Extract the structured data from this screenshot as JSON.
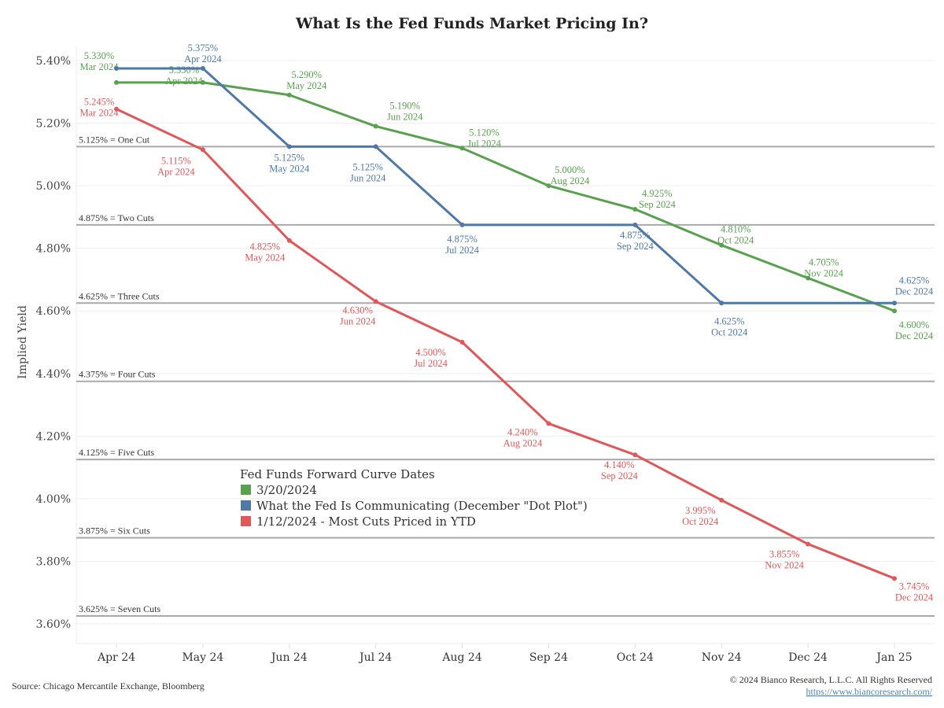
{
  "chart_data": {
    "type": "line",
    "title": "What Is the Fed Funds Market Pricing In?",
    "xlabel": "",
    "ylabel": "Implied Yield",
    "ylim": [
      3.55,
      5.45
    ],
    "y_ticks": [
      5.4,
      5.2,
      5.0,
      4.8,
      4.6,
      4.4,
      4.2,
      4.0,
      3.8,
      3.6
    ],
    "y_tick_labels": [
      "5.40%",
      "5.20%",
      "5.00%",
      "4.80%",
      "4.60%",
      "4.40%",
      "4.20%",
      "4.00%",
      "3.80%",
      "3.60%"
    ],
    "x_tick_labels": [
      "Apr 24",
      "May 24",
      "Jun 24",
      "Jul 24",
      "Aug 24",
      "Sep 24",
      "Oct 24",
      "Nov 24",
      "Dec 24",
      "Jan 25"
    ],
    "grid": true,
    "reference_lines": [
      {
        "value": 5.125,
        "label": "5.125% = One Cut"
      },
      {
        "value": 4.875,
        "label": "4.875% = Two Cuts"
      },
      {
        "value": 4.625,
        "label": "4.625% = Three Cuts"
      },
      {
        "value": 4.375,
        "label": "4.375% = Four Cuts"
      },
      {
        "value": 4.125,
        "label": "4.125% = Five Cuts"
      },
      {
        "value": 3.875,
        "label": "3.875% = Six Cuts"
      },
      {
        "value": 3.625,
        "label": "3.625% = Seven Cuts"
      }
    ],
    "legend": {
      "title": "Fed Funds Forward Curve Dates",
      "placement": "center-left"
    },
    "series": [
      {
        "name": "3/20/2024",
        "color": "#59a14f",
        "x": [
          "Mar 2024",
          "Apr 2024",
          "May 2024",
          "Jun 2024",
          "Jul 2024",
          "Aug 2024",
          "Sep 2024",
          "Oct 2024",
          "Nov 2024",
          "Dec 2024"
        ],
        "values": [
          5.33,
          5.33,
          5.29,
          5.19,
          5.12,
          5.0,
          4.925,
          4.81,
          4.705,
          4.6
        ],
        "labels": [
          "5.330%",
          "5.330%",
          "5.290%",
          "5.190%",
          "5.120%",
          "5.000%",
          "4.925%",
          "4.810%",
          "4.705%",
          "4.600%"
        ]
      },
      {
        "name": "What the Fed Is Communicating (December \"Dot Plot\")",
        "color": "#4e79a7",
        "x": [
          "Mar 2024",
          "Apr 2024",
          "May 2024",
          "Jun 2024",
          "Jul 2024",
          "Sep 2024",
          "Oct 2024",
          "Dec 2024"
        ],
        "x_index": [
          0,
          1,
          2,
          3,
          4,
          6,
          7,
          9
        ],
        "values": [
          5.375,
          5.375,
          5.125,
          5.125,
          4.875,
          4.875,
          4.625,
          4.625
        ],
        "labels": [
          null,
          "5.375%",
          "5.125%",
          "5.125%",
          "4.875%",
          "4.875%",
          "4.625%",
          "4.625%"
        ]
      },
      {
        "name": "1/12/2024 - Most Cuts Priced in YTD",
        "color": "#e15759",
        "x": [
          "Mar 2024",
          "Apr 2024",
          "May 2024",
          "Jun 2024",
          "Jul 2024",
          "Aug 2024",
          "Sep 2024",
          "Oct 2024",
          "Nov 2024",
          "Dec 2024"
        ],
        "values": [
          5.245,
          5.115,
          4.825,
          4.63,
          4.5,
          4.24,
          4.14,
          3.995,
          3.855,
          3.745
        ],
        "labels": [
          "5.245%",
          "5.115%",
          "4.825%",
          "4.630%",
          "4.500%",
          "4.240%",
          "4.140%",
          "3.995%",
          "3.855%",
          "3.745%"
        ]
      }
    ]
  },
  "footer": {
    "source": "Source: Chicago Mercantile Exchange, Bloomberg",
    "copyright": "© 2024 Bianco Research, L.L.C. All Rights Reserved",
    "link": "https://www.biancoresearch.com/"
  }
}
